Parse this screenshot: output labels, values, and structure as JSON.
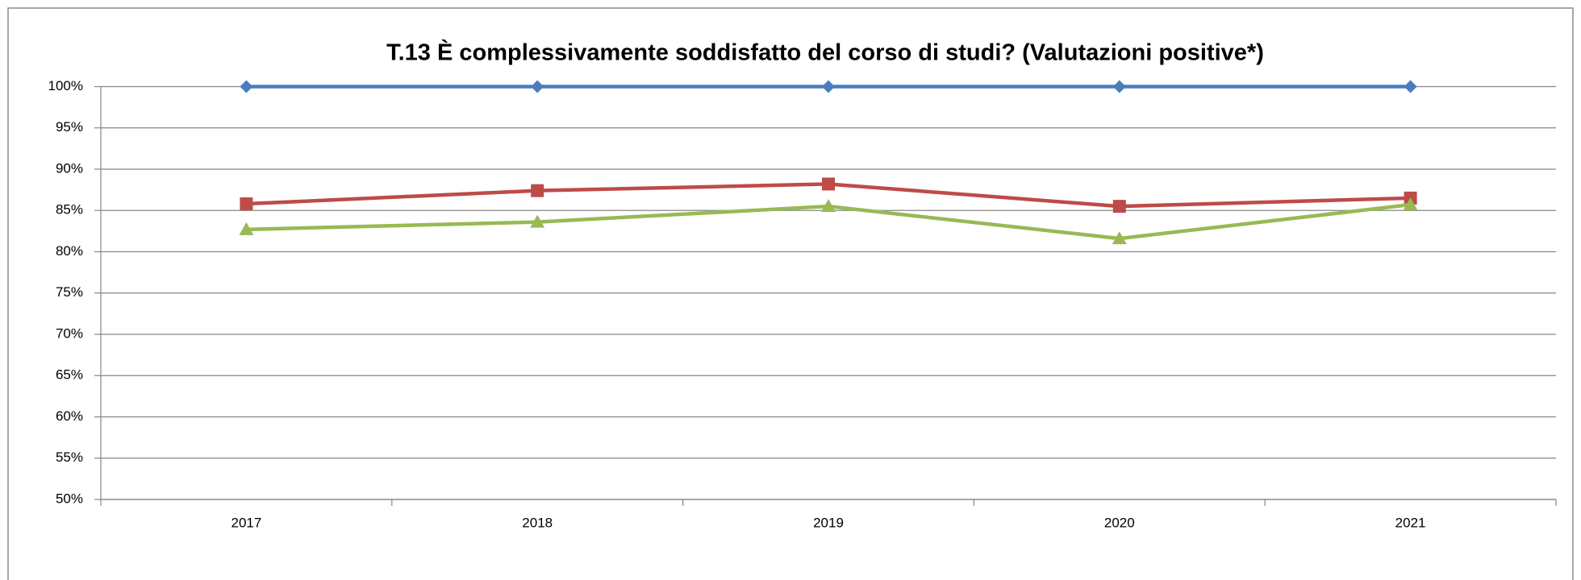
{
  "chart_data": {
    "type": "line",
    "title": "T.13 È complessivamente soddisfatto del corso di studi? (Valutazioni positive*)",
    "categories": [
      "2017",
      "2018",
      "2019",
      "2020",
      "2021"
    ],
    "series": [
      {
        "color": "#4a7ebb",
        "marker": "diamond",
        "values": [
          100,
          100,
          100,
          100,
          100
        ]
      },
      {
        "color": "#be4b48",
        "marker": "square",
        "values": [
          85.8,
          87.4,
          88.2,
          85.5,
          86.5
        ]
      },
      {
        "color": "#98b954",
        "marker": "triangle",
        "values": [
          82.7,
          83.6,
          85.5,
          81.6,
          85.7
        ]
      }
    ],
    "ylim": [
      50,
      100
    ],
    "yticks": [
      {
        "value": 50,
        "label": "50%"
      },
      {
        "value": 55,
        "label": "55%"
      },
      {
        "value": 60,
        "label": "60%"
      },
      {
        "value": 65,
        "label": "65%"
      },
      {
        "value": 70,
        "label": "70%"
      },
      {
        "value": 75,
        "label": "75%"
      },
      {
        "value": 80,
        "label": "80%"
      },
      {
        "value": 85,
        "label": "85%"
      },
      {
        "value": 90,
        "label": "90%"
      },
      {
        "value": 95,
        "label": "95%"
      },
      {
        "value": 100,
        "label": "100%"
      }
    ],
    "grid": true
  }
}
